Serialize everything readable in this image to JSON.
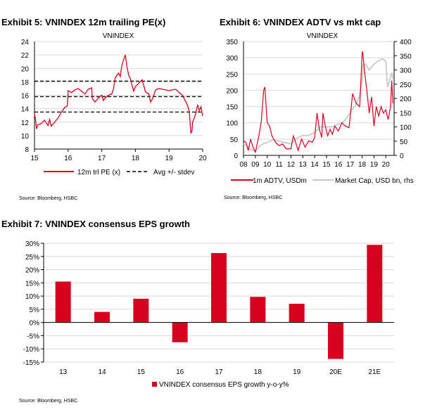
{
  "chart_data": [
    {
      "type": "line",
      "title": "Exhibit 5: VNINDEX 12m trailing PE(x)",
      "subtitle": "VNINDEX",
      "xlim": [
        15,
        20
      ],
      "ylim": [
        8,
        24
      ],
      "xticks": [
        "15",
        "16",
        "17",
        "18",
        "19",
        "20"
      ],
      "yticks": [
        "8",
        "10",
        "12",
        "14",
        "16",
        "18",
        "20",
        "22",
        "24"
      ],
      "series": [
        {
          "name": "12m trl PE (x)",
          "color": "#d7001e",
          "x": [
            15.0,
            15.03,
            15.06,
            15.1,
            15.2,
            15.3,
            15.35,
            15.4,
            15.45,
            15.5,
            15.6,
            15.7,
            15.8,
            15.9,
            15.95,
            15.98,
            16.0,
            16.1,
            16.2,
            16.3,
            16.4,
            16.5,
            16.6,
            16.7,
            16.72,
            16.8,
            16.9,
            17.0,
            17.05,
            17.1,
            17.2,
            17.3,
            17.35,
            17.4,
            17.5,
            17.55,
            17.6,
            17.7,
            17.75,
            17.8,
            17.85,
            17.9,
            17.95,
            18.0,
            18.1,
            18.2,
            18.3,
            18.4,
            18.45,
            18.5,
            18.6,
            18.7,
            18.8,
            18.9,
            19.0,
            19.1,
            19.2,
            19.3,
            19.4,
            19.5,
            19.55,
            19.6,
            19.65,
            19.68,
            19.7,
            19.75,
            19.8,
            19.85,
            19.9,
            19.95,
            20.0
          ],
          "y": [
            13.2,
            12.5,
            11,
            11.6,
            11.8,
            12.3,
            11.9,
            11.5,
            12.4,
            11.4,
            12,
            12.6,
            13.5,
            14.2,
            14.3,
            14.5,
            16.7,
            16.4,
            16.8,
            17.0,
            16.6,
            16.2,
            16.9,
            17.1,
            15.5,
            15.0,
            15.6,
            16.0,
            15.2,
            15.6,
            16.0,
            16.2,
            17.0,
            18.6,
            19.3,
            18.8,
            20.5,
            22.0,
            20.2,
            19.0,
            18.5,
            17.5,
            16.6,
            17.3,
            17.8,
            18.3,
            16.5,
            16.2,
            15.0,
            15.4,
            16.8,
            17.0,
            16.9,
            16.8,
            16.7,
            16.8,
            16.9,
            16.4,
            16.0,
            15.0,
            14.5,
            13.6,
            10.4,
            10.6,
            12.0,
            12.6,
            13.4,
            14.6,
            13.7,
            14.3,
            12.9
          ]
        },
        {
          "name": "Avg +/- stdev",
          "color": "#000000",
          "levels": [
            18.1,
            15.8,
            13.5
          ]
        }
      ],
      "source": "Source: Bloomberg, HSBC"
    },
    {
      "type": "line",
      "title": "Exhibit 6: VNINDEX ADTV vs mkt cap",
      "subtitle": "VNINDEX",
      "xlim": [
        2008,
        2020.7
      ],
      "ylim": [
        0,
        350
      ],
      "y2lim": [
        0,
        400
      ],
      "xticks": [
        "08",
        "09",
        "10",
        "11",
        "12",
        "13",
        "14",
        "15",
        "16",
        "17",
        "18",
        "19",
        "20"
      ],
      "yticks": [
        "0",
        "50",
        "100",
        "150",
        "200",
        "250",
        "300",
        "350"
      ],
      "y2ticks": [
        "0",
        "50",
        "100",
        "150",
        "200",
        "250",
        "300",
        "350",
        "400"
      ],
      "series": [
        {
          "name": "1m ADTV, USDm",
          "color": "#d7001e",
          "axis": "left",
          "x": [
            2008,
            2008.2,
            2008.4,
            2008.6,
            2008.8,
            2009,
            2009.3,
            2009.5,
            2009.7,
            2009.8,
            2010,
            2010.2,
            2010.4,
            2010.7,
            2011,
            2011.3,
            2011.6,
            2012,
            2012.2,
            2012.4,
            2012.6,
            2012.9,
            2013.2,
            2013.5,
            2013.8,
            2014,
            2014.2,
            2014.4,
            2014.6,
            2014.7,
            2014.9,
            2015.1,
            2015.3,
            2015.5,
            2015.7,
            2016,
            2016.3,
            2016.6,
            2016.9,
            2017,
            2017.2,
            2017.5,
            2017.8,
            2018,
            2018.05,
            2018.2,
            2018.4,
            2018.6,
            2018.8,
            2019,
            2019.2,
            2019.4,
            2019.6,
            2019.8,
            2020,
            2020.2,
            2020.4,
            2020.5,
            2020.6
          ],
          "y": [
            45,
            40,
            15,
            50,
            25,
            10,
            60,
            105,
            200,
            210,
            100,
            90,
            60,
            40,
            30,
            35,
            20,
            20,
            60,
            40,
            15,
            50,
            25,
            45,
            40,
            55,
            130,
            80,
            55,
            130,
            90,
            60,
            80,
            65,
            90,
            75,
            100,
            90,
            85,
            120,
            190,
            160,
            150,
            310,
            320,
            260,
            200,
            130,
            180,
            90,
            150,
            120,
            150,
            130,
            140,
            110,
            150,
            230,
            160
          ]
        },
        {
          "name": "Market Cap, USD bn, rhs",
          "color": "#c8c8c8",
          "axis": "right",
          "x": [
            2008,
            2008.3,
            2008.6,
            2009,
            2009.3,
            2009.6,
            2010,
            2010.5,
            2011,
            2011.5,
            2012,
            2012.5,
            2013,
            2013.5,
            2014,
            2014.5,
            2015,
            2015.5,
            2016,
            2016.5,
            2017,
            2017.5,
            2017.8,
            2018,
            2018.1,
            2018.3,
            2018.6,
            2019,
            2019.3,
            2019.7,
            2020,
            2020.15,
            2020.3,
            2020.5,
            2020.6
          ],
          "y": [
            40,
            35,
            20,
            15,
            30,
            40,
            45,
            55,
            50,
            45,
            40,
            60,
            70,
            70,
            80,
            100,
            100,
            100,
            110,
            120,
            150,
            180,
            210,
            260,
            320,
            320,
            300,
            320,
            330,
            340,
            330,
            240,
            260,
            290,
            270
          ]
        }
      ],
      "source": "Source: Bloomberg, HSBC"
    },
    {
      "type": "bar",
      "title": "Exhibit 7: VNINDEX consensus EPS growth",
      "categories": [
        "13",
        "14",
        "15",
        "16",
        "17",
        "18",
        "19",
        "20E",
        "21E"
      ],
      "values": [
        15.5,
        4.0,
        9.0,
        -7.5,
        26.3,
        9.7,
        7.1,
        -13.8,
        29.4
      ],
      "ylim": [
        -15,
        30
      ],
      "yticks": [
        "-15%",
        "-10%",
        "-5%",
        "0%",
        "5%",
        "10%",
        "15%",
        "20%",
        "25%",
        "30%"
      ],
      "legend": "VNINDEX consensus EPS growth y-o-y%",
      "color": "#d7001e",
      "source": "Source: Bloomberg, HSBC"
    }
  ]
}
